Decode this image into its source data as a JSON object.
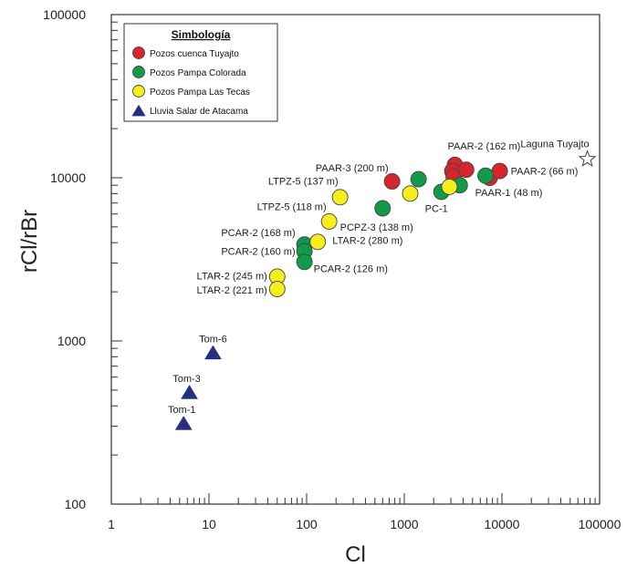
{
  "chart_data": {
    "type": "scatter",
    "title": "",
    "xlabel": "Cl",
    "ylabel": "rCl/rBr",
    "xscale": "log",
    "yscale": "log",
    "xlim": [
      1,
      100000
    ],
    "ylim": [
      100,
      100000
    ],
    "x_ticks": [
      "1",
      "10",
      "100",
      "1000",
      "10000",
      "100000"
    ],
    "y_ticks": [
      "100",
      "1000",
      "10000",
      "100000"
    ],
    "grid": false,
    "legend": {
      "title": "Simbología",
      "placement": "top-left",
      "entries": [
        {
          "name": "Pozos cuenca Tuyajto",
          "color": "#d7262b",
          "marker": "circle"
        },
        {
          "name": "Pozos Pampa Colorada",
          "color": "#109a4a",
          "marker": "circle"
        },
        {
          "name": "Pozos Pampa Las Tecas",
          "color": "#f6ee1c",
          "marker": "circle"
        },
        {
          "name": "Lluvia Salar de Atacama",
          "color": "#27307e",
          "marker": "triangle"
        }
      ]
    },
    "series": [
      {
        "name": "Pozos cuenca Tuyajto",
        "color": "#d7262b",
        "marker": "circle",
        "points": [
          {
            "x": 750,
            "y": 9500,
            "label": "PAAR-3 (200 m)"
          },
          {
            "x": 3300,
            "y": 12000,
            "label": "PAAR-2 (162 m)"
          },
          {
            "x": 3100,
            "y": 11000,
            "label": ""
          },
          {
            "x": 3200,
            "y": 10200,
            "label": ""
          },
          {
            "x": 4300,
            "y": 11200,
            "label": ""
          },
          {
            "x": 7500,
            "y": 10000,
            "label": "PAAR-1 (48 m)"
          },
          {
            "x": 9500,
            "y": 11000,
            "label": "PAAR-2 (66 m)"
          }
        ]
      },
      {
        "name": "Pozos Pampa Colorada",
        "color": "#109a4a",
        "marker": "circle",
        "points": [
          {
            "x": 95,
            "y": 3900,
            "label": "PCAR-2 (168 m)"
          },
          {
            "x": 95,
            "y": 3550,
            "label": "PCAR-2 (160 m)"
          },
          {
            "x": 95,
            "y": 3050,
            "label": "PCAR-2 (126 m)"
          },
          {
            "x": 600,
            "y": 6500,
            "label": ""
          },
          {
            "x": 1400,
            "y": 9800,
            "label": ""
          },
          {
            "x": 2400,
            "y": 8200,
            "label": "PC-1"
          },
          {
            "x": 3700,
            "y": 9000,
            "label": ""
          },
          {
            "x": 6800,
            "y": 10300,
            "label": ""
          }
        ]
      },
      {
        "name": "Pozos Pampa Las Tecas",
        "color": "#f6ee1c",
        "marker": "circle",
        "points": [
          {
            "x": 50,
            "y": 2480,
            "label": "LTAR-2 (245 m)"
          },
          {
            "x": 50,
            "y": 2080,
            "label": "LTAR-2 (221 m)"
          },
          {
            "x": 130,
            "y": 4050,
            "label": "LTAR-2 (280 m)"
          },
          {
            "x": 170,
            "y": 5400,
            "label": "PCPZ-3 (138 m)"
          },
          {
            "x": 220,
            "y": 7600,
            "label": "LTPZ-5 (137 m)"
          },
          {
            "x": 1150,
            "y": 8000,
            "label": ""
          },
          {
            "x": 2900,
            "y": 8800,
            "label": ""
          }
        ]
      },
      {
        "name": "Lluvia Salar de Atacama",
        "color": "#27307e",
        "marker": "triangle",
        "points": [
          {
            "x": 11,
            "y": 840,
            "label": "Tom-6"
          },
          {
            "x": 6.3,
            "y": 480,
            "label": "Tom-3"
          },
          {
            "x": 5.5,
            "y": 310,
            "label": "Tom-1"
          }
        ]
      },
      {
        "name": "Laguna Tuyajto",
        "color": "#ffffff",
        "marker": "star",
        "points": [
          {
            "x": 75000,
            "y": 13000,
            "label": "Laguna Tuyajto"
          }
        ]
      }
    ],
    "annotations": [
      {
        "text": "LTPZ-5 (118 m)",
        "x": 220,
        "y": 7600
      }
    ]
  }
}
